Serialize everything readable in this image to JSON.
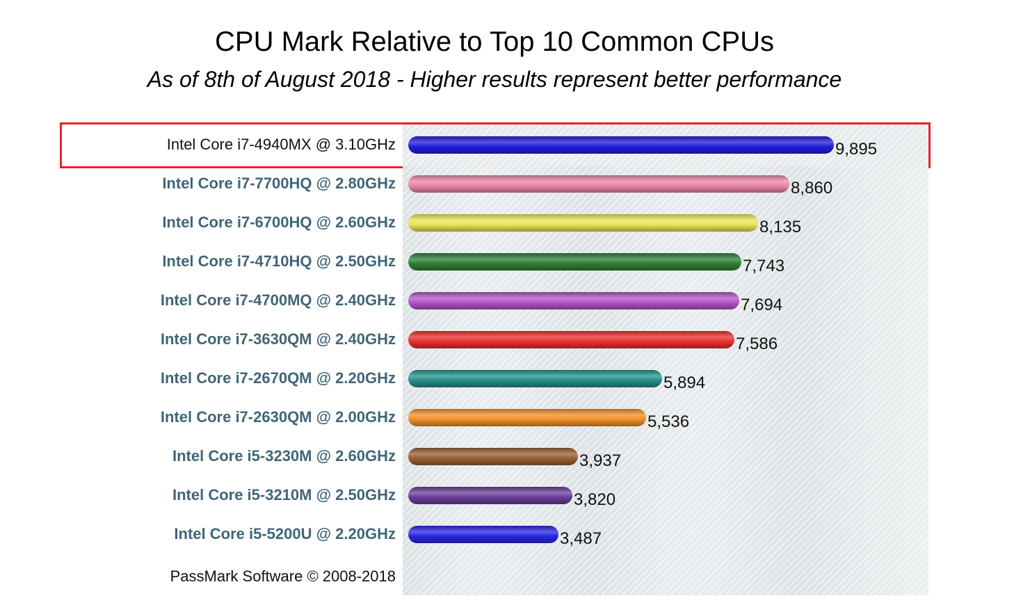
{
  "title": "CPU Mark Relative to Top 10 Common CPUs",
  "subtitle": "As of 8th of August 2018 - Higher results represent better performance",
  "footer": "PassMark Software © 2008-2018",
  "chart_data": {
    "type": "bar",
    "orientation": "horizontal",
    "title": "CPU Mark Relative to Top 10 Common CPUs",
    "subtitle": "As of 8th of August 2018 - Higher results represent better performance",
    "highlighted": "Intel Core i7-4940MX @ 3.10GHz",
    "categories": [
      "Intel Core i7-4940MX @ 3.10GHz",
      "Intel Core i7-7700HQ @ 2.80GHz",
      "Intel Core i7-6700HQ @ 2.60GHz",
      "Intel Core i7-4710HQ @ 2.50GHz",
      "Intel Core i7-4700MQ @ 2.40GHz",
      "Intel Core i7-3630QM @ 2.40GHz",
      "Intel Core i7-2670QM @ 2.20GHz",
      "Intel Core i7-2630QM @ 2.00GHz",
      "Intel Core i5-3230M @ 2.60GHz",
      "Intel Core i5-3210M @ 2.50GHz",
      "Intel Core i5-5200U @ 2.20GHz"
    ],
    "values": [
      9895,
      8860,
      8135,
      7743,
      7694,
      7586,
      5894,
      5536,
      3937,
      3820,
      3487
    ],
    "value_labels": [
      "9,895",
      "8,860",
      "8,135",
      "7,743",
      "7,694",
      "7,586",
      "5,894",
      "5,536",
      "3,937",
      "3,820",
      "3,487"
    ],
    "colors": [
      "#1f1fd9",
      "#ec86a7",
      "#e9e35a",
      "#2f7f38",
      "#b154c6",
      "#ea2f2c",
      "#24908b",
      "#ef8f28",
      "#9a5f34",
      "#6a3d99",
      "#2727e0"
    ],
    "xlim": [
      0,
      9895
    ],
    "grid": false,
    "legend": "none"
  }
}
